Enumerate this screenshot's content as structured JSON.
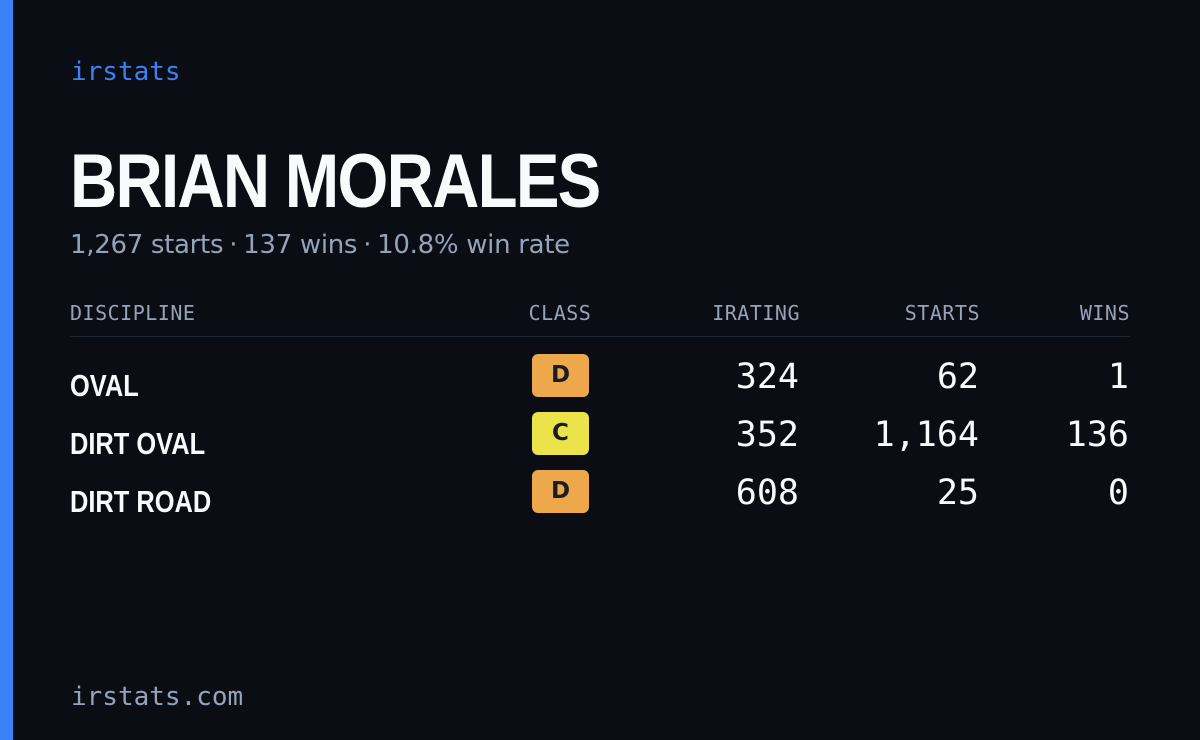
{
  "brand": "irstats",
  "driver": {
    "name": "BRIAN MORALES",
    "starts_text": "1,267 starts",
    "wins_text": "137 wins",
    "win_rate_text": "10.8% win rate",
    "separator": "·"
  },
  "table": {
    "headers": {
      "discipline": "DISCIPLINE",
      "class": "CLASS",
      "irating": "IRATING",
      "starts": "STARTS",
      "wins": "WINS"
    },
    "rows": [
      {
        "discipline": "OVAL",
        "class": "D",
        "irating": "324",
        "starts": "62",
        "wins": "1"
      },
      {
        "discipline": "DIRT OVAL",
        "class": "C",
        "irating": "352",
        "starts": "1,164",
        "wins": "136"
      },
      {
        "discipline": "DIRT ROAD",
        "class": "D",
        "irating": "608",
        "starts": "25",
        "wins": "0"
      }
    ]
  },
  "class_colors": {
    "D": "#eca84a",
    "C": "#ece24a"
  },
  "accent_color": "#3b82f6",
  "footer": {
    "domain": "irstats.com"
  }
}
